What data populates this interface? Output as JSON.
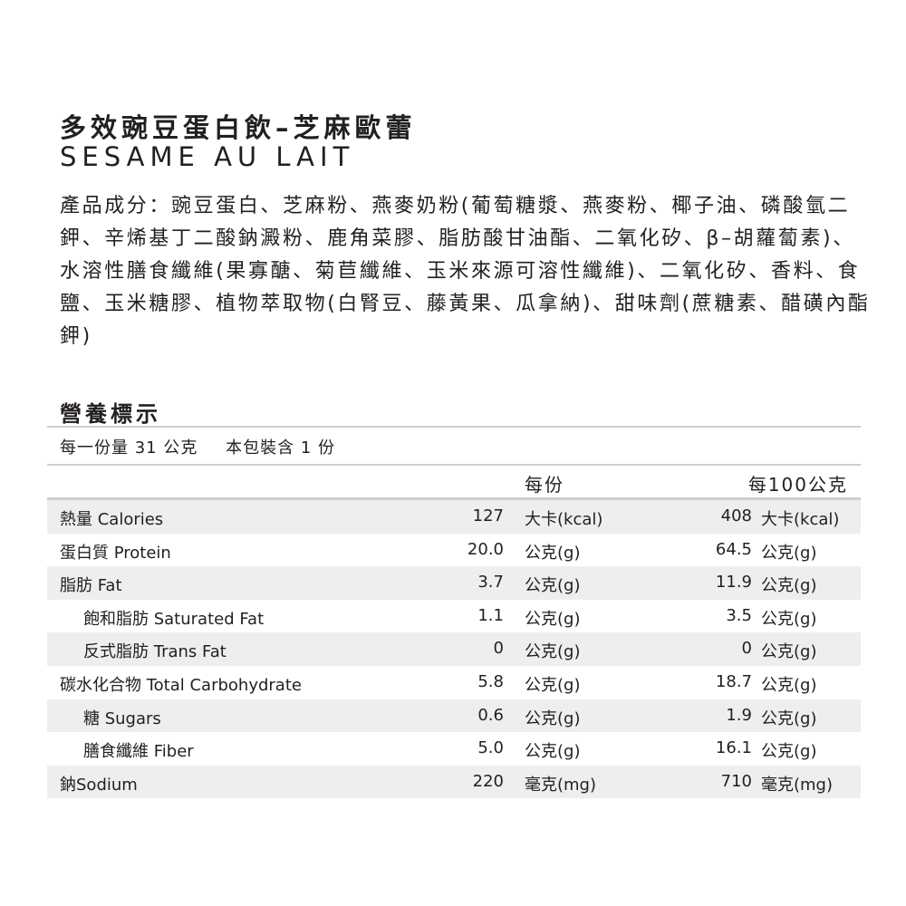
{
  "product": {
    "title_zh": "多效豌豆蛋白飲–芝麻歐蕾",
    "title_en": "SESAME AU LAIT",
    "ingredients": "產品成分：豌豆蛋白、芝麻粉、燕麥奶粉(葡萄糖漿、燕麥粉、椰子油、磷酸氫二鉀、辛烯基丁二酸鈉澱粉、鹿角菜膠、脂肪酸甘油酯、二氧化矽、β–胡蘿蔔素)、水溶性膳食纖維(果寡醣、菊苣纖維、玉米來源可溶性纖維)、二氧化矽、香料、食鹽、玉米糖膠、植物萃取物(白腎豆、藤黃果、瓜拿納)、甜味劑(蔗糖素、醋磺內酯鉀)"
  },
  "nutrition": {
    "title": "營養標示",
    "serving_size": "每一份量 31 公克",
    "servings_per_pack": "本包裝含 1 份",
    "col_per_serving": "每份",
    "col_per_100g": "每100公克",
    "rows": [
      {
        "label": "熱量 Calories",
        "v1": "127",
        "u1": "大卡(kcal)",
        "v2": "408",
        "u2": "大卡(kcal)"
      },
      {
        "label": "蛋白質 Protein",
        "v1": "20.0",
        "u1": "公克(g)",
        "v2": "64.5",
        "u2": "公克(g)"
      },
      {
        "label": "脂肪 Fat",
        "v1": "3.7",
        "u1": "公克(g)",
        "v2": "11.9",
        "u2": "公克(g)"
      },
      {
        "label": "飽和脂肪 Saturated Fat",
        "v1": "1.1",
        "u1": "公克(g)",
        "v2": "3.5",
        "u2": "公克(g)"
      },
      {
        "label": "反式脂肪 Trans Fat",
        "v1": "0",
        "u1": "公克(g)",
        "v2": "0",
        "u2": "公克(g)"
      },
      {
        "label": "碳水化合物 Total Carbohydrate",
        "v1": "5.8",
        "u1": "公克(g)",
        "v2": "18.7",
        "u2": "公克(g)"
      },
      {
        "label": "糖 Sugars",
        "v1": "0.6",
        "u1": "公克(g)",
        "v2": "1.9",
        "u2": "公克(g)"
      },
      {
        "label": "膳食纖維 Fiber",
        "v1": "5.0",
        "u1": "公克(g)",
        "v2": "16.1",
        "u2": "公克(g)"
      },
      {
        "label": "鈉Sodium",
        "v1": "220",
        "u1": "毫克(mg)",
        "v2": "710",
        "u2": "毫克(mg)"
      }
    ]
  }
}
